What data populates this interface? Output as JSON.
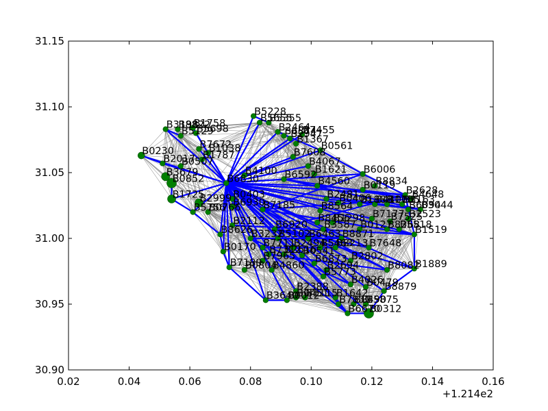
{
  "chart_data": {
    "type": "scatter",
    "subtype": "network-graph",
    "title": "",
    "xlabel": "",
    "ylabel": "",
    "x_offset_label": "+1.214e2",
    "xlim": [
      0.02,
      0.16
    ],
    "ylim": [
      30.9,
      31.15
    ],
    "x_ticks": [
      "0.02",
      "0.04",
      "0.06",
      "0.08",
      "0.10",
      "0.12",
      "0.14",
      "0.16"
    ],
    "y_ticks": [
      "30.90",
      "30.95",
      "31.00",
      "31.05",
      "31.10",
      "31.15"
    ],
    "grid": false,
    "colors": {
      "node": "#007f00",
      "highlight_edge": "#0000ff",
      "edge": "#808080",
      "axes": "#000000"
    },
    "nodes": [
      {
        "label": "B5228",
        "x": 0.081,
        "y": 31.093
      },
      {
        "label": "B5655",
        "x": 0.083,
        "y": 31.088
      },
      {
        "label": "B5355",
        "x": 0.086,
        "y": 31.088
      },
      {
        "label": "B1758",
        "x": 0.061,
        "y": 31.084
      },
      {
        "label": "B3198",
        "x": 0.052,
        "y": 31.083
      },
      {
        "label": "B8822",
        "x": 0.056,
        "y": 31.083
      },
      {
        "label": "B5698",
        "x": 0.062,
        "y": 31.08
      },
      {
        "label": "B5129",
        "x": 0.057,
        "y": 31.078
      },
      {
        "label": "B2464",
        "x": 0.089,
        "y": 31.081
      },
      {
        "label": "B6874",
        "x": 0.091,
        "y": 31.078
      },
      {
        "label": "B7455",
        "x": 0.097,
        "y": 31.079
      },
      {
        "label": "B2947",
        "x": 0.093,
        "y": 31.076
      },
      {
        "label": "B1367",
        "x": 0.095,
        "y": 31.072
      },
      {
        "label": "B0561",
        "x": 0.103,
        "y": 31.067
      },
      {
        "label": "B7672",
        "x": 0.063,
        "y": 31.068
      },
      {
        "label": "B1038",
        "x": 0.066,
        "y": 31.065
      },
      {
        "label": "B0230",
        "x": 0.044,
        "y": 31.063
      },
      {
        "label": "B7608",
        "x": 0.094,
        "y": 31.062
      },
      {
        "label": "B1787",
        "x": 0.064,
        "y": 31.06
      },
      {
        "label": "B2017",
        "x": 0.051,
        "y": 31.057
      },
      {
        "label": "B4067",
        "x": 0.099,
        "y": 31.055
      },
      {
        "label": "B0507",
        "x": 0.057,
        "y": 31.055
      },
      {
        "label": "B1621",
        "x": 0.101,
        "y": 31.049
      },
      {
        "label": "B6006",
        "x": 0.117,
        "y": 31.049
      },
      {
        "label": "B4100",
        "x": 0.078,
        "y": 31.048
      },
      {
        "label": "B6592",
        "x": 0.091,
        "y": 31.045
      },
      {
        "label": "B3679",
        "x": 0.052,
        "y": 31.047
      },
      {
        "label": "B0852",
        "x": 0.054,
        "y": 31.042
      },
      {
        "label": "B4560",
        "x": 0.102,
        "y": 31.04
      },
      {
        "label": "B8834",
        "x": 0.121,
        "y": 31.04
      },
      {
        "label": "B0119",
        "x": 0.117,
        "y": 31.037
      },
      {
        "label": "B6830",
        "x": 0.072,
        "y": 31.042
      },
      {
        "label": "B2628",
        "x": 0.131,
        "y": 31.033
      },
      {
        "label": "B4648",
        "x": 0.133,
        "y": 31.03
      },
      {
        "label": "B2481",
        "x": 0.105,
        "y": 31.03
      },
      {
        "label": "B0403",
        "x": 0.074,
        "y": 31.03
      },
      {
        "label": "B1725",
        "x": 0.054,
        "y": 31.03
      },
      {
        "label": "B2999",
        "x": 0.063,
        "y": 31.027
      },
      {
        "label": "B0406",
        "x": 0.109,
        "y": 31.027
      },
      {
        "label": "B1888",
        "x": 0.116,
        "y": 31.026
      },
      {
        "label": "B4100b",
        "x": 0.121,
        "y": 31.026
      },
      {
        "label": "B1785",
        "x": 0.125,
        "y": 31.026
      },
      {
        "label": "B3163",
        "x": 0.13,
        "y": 31.026
      },
      {
        "label": "B6094",
        "x": 0.132,
        "y": 31.022
      },
      {
        "label": "B3044",
        "x": 0.136,
        "y": 31.022
      },
      {
        "label": "B8564",
        "x": 0.103,
        "y": 31.021
      },
      {
        "label": "B7185",
        "x": 0.084,
        "y": 31.022
      },
      {
        "label": "B6930",
        "x": 0.074,
        "y": 31.024
      },
      {
        "label": "B5756",
        "x": 0.061,
        "y": 31.02
      },
      {
        "label": "B0766",
        "x": 0.066,
        "y": 31.02
      },
      {
        "label": "B7177",
        "x": 0.12,
        "y": 31.015
      },
      {
        "label": "B7525",
        "x": 0.126,
        "y": 31.013
      },
      {
        "label": "B2523",
        "x": 0.132,
        "y": 31.015
      },
      {
        "label": "B8456",
        "x": 0.102,
        "y": 31.012
      },
      {
        "label": "B1298",
        "x": 0.107,
        "y": 31.012
      },
      {
        "label": "B2112",
        "x": 0.074,
        "y": 31.01
      },
      {
        "label": "B6920",
        "x": 0.088,
        "y": 31.007
      },
      {
        "label": "B3587",
        "x": 0.104,
        "y": 31.007
      },
      {
        "label": "B0127",
        "x": 0.116,
        "y": 31.007
      },
      {
        "label": "B8268",
        "x": 0.125,
        "y": 31.007
      },
      {
        "label": "B5518",
        "x": 0.129,
        "y": 31.007
      },
      {
        "label": "B1519",
        "x": 0.134,
        "y": 31.003
      },
      {
        "label": "B8626",
        "x": 0.07,
        "y": 31.003
      },
      {
        "label": "B3232",
        "x": 0.08,
        "y": 31.0
      },
      {
        "label": "B5102",
        "x": 0.089,
        "y": 31.0
      },
      {
        "label": "B6463",
        "x": 0.099,
        "y": 31.0
      },
      {
        "label": "B8871",
        "x": 0.11,
        "y": 31.0
      },
      {
        "label": "B7648",
        "x": 0.119,
        "y": 30.993
      },
      {
        "label": "B7711",
        "x": 0.084,
        "y": 30.993
      },
      {
        "label": "B2494",
        "x": 0.094,
        "y": 30.993
      },
      {
        "label": "B5463",
        "x": 0.103,
        "y": 30.993
      },
      {
        "label": "B8213",
        "x": 0.108,
        "y": 30.993
      },
      {
        "label": "B0170",
        "x": 0.071,
        "y": 30.99
      },
      {
        "label": "B7312",
        "x": 0.086,
        "y": 30.988
      },
      {
        "label": "B2616",
        "x": 0.091,
        "y": 30.988
      },
      {
        "label": "B0541",
        "x": 0.097,
        "y": 30.987
      },
      {
        "label": "B2802",
        "x": 0.113,
        "y": 30.983
      },
      {
        "label": "B7965",
        "x": 0.084,
        "y": 30.983
      },
      {
        "label": "B6873",
        "x": 0.101,
        "y": 30.981
      },
      {
        "label": "B7189",
        "x": 0.073,
        "y": 30.978
      },
      {
        "label": "B0804",
        "x": 0.078,
        "y": 30.976
      },
      {
        "label": "B4860",
        "x": 0.087,
        "y": 30.976
      },
      {
        "label": "B2694",
        "x": 0.105,
        "y": 30.976
      },
      {
        "label": "B8082",
        "x": 0.125,
        "y": 30.976
      },
      {
        "label": "B1889",
        "x": 0.134,
        "y": 30.977
      },
      {
        "label": "B5773",
        "x": 0.104,
        "y": 30.971
      },
      {
        "label": "B4026",
        "x": 0.113,
        "y": 30.965
      },
      {
        "label": "B0479",
        "x": 0.118,
        "y": 30.963
      },
      {
        "label": "B8879",
        "x": 0.124,
        "y": 30.96
      },
      {
        "label": "B2388",
        "x": 0.095,
        "y": 30.96
      },
      {
        "label": "B1642",
        "x": 0.108,
        "y": 30.955
      },
      {
        "label": "B0451",
        "x": 0.095,
        "y": 30.955
      },
      {
        "label": "B1115",
        "x": 0.098,
        "y": 30.955
      },
      {
        "label": "B3640",
        "x": 0.085,
        "y": 30.953
      },
      {
        "label": "B0012",
        "x": 0.092,
        "y": 30.953
      },
      {
        "label": "B7830",
        "x": 0.109,
        "y": 30.95
      },
      {
        "label": "B8490",
        "x": 0.114,
        "y": 30.95
      },
      {
        "label": "B5875",
        "x": 0.118,
        "y": 30.95
      },
      {
        "label": "B6670",
        "x": 0.112,
        "y": 30.943
      },
      {
        "label": "B0312",
        "x": 0.119,
        "y": 30.943
      }
    ],
    "highlight_edges": [
      [
        "B6830",
        "B5228"
      ],
      [
        "B6830",
        "B5655"
      ],
      [
        "B6830",
        "B1758"
      ],
      [
        "B6830",
        "B3198"
      ],
      [
        "B6830",
        "B5698"
      ],
      [
        "B6830",
        "B2464"
      ],
      [
        "B6830",
        "B7455"
      ],
      [
        "B6830",
        "B2947"
      ],
      [
        "B6830",
        "B0561"
      ],
      [
        "B6830",
        "B7672"
      ],
      [
        "B6830",
        "B0230"
      ],
      [
        "B6830",
        "B7608"
      ],
      [
        "B6830",
        "B2017"
      ],
      [
        "B6830",
        "B4067"
      ],
      [
        "B6830",
        "B4560"
      ],
      [
        "B6830",
        "B6006"
      ],
      [
        "B6830",
        "B2628"
      ],
      [
        "B6830",
        "B3044"
      ],
      [
        "B6830",
        "B7177"
      ],
      [
        "B6830",
        "B1519"
      ],
      [
        "B6830",
        "B7648"
      ],
      [
        "B6830",
        "B8871"
      ],
      [
        "B6830",
        "B1889"
      ],
      [
        "B6830",
        "B8082"
      ],
      [
        "B6830",
        "B4026"
      ],
      [
        "B6830",
        "B8879"
      ],
      [
        "B6830",
        "B0312"
      ],
      [
        "B6830",
        "B6670"
      ],
      [
        "B6830",
        "B1642"
      ],
      [
        "B6830",
        "B3640"
      ],
      [
        "B6830",
        "B0012"
      ],
      [
        "B6830",
        "B4860"
      ],
      [
        "B6830",
        "B7189"
      ],
      [
        "B6830",
        "B0170"
      ],
      [
        "B6830",
        "B8626"
      ],
      [
        "B6830",
        "B2112"
      ],
      [
        "B6830",
        "B3232"
      ],
      [
        "B6830",
        "B5756"
      ],
      [
        "B6830",
        "B1725"
      ],
      [
        "B6830",
        "B6592"
      ],
      [
        "B6830",
        "B7185"
      ],
      [
        "B6830",
        "B0406"
      ],
      [
        "B6830",
        "B2802"
      ],
      [
        "B6830",
        "B5773"
      ],
      [
        "B6830",
        "B2388"
      ],
      [
        "B0230",
        "B2017"
      ],
      [
        "B3198",
        "B5129"
      ],
      [
        "B1758",
        "B5698"
      ],
      [
        "B5228",
        "B5355"
      ],
      [
        "B2464",
        "B0561"
      ],
      [
        "B0561",
        "B6006"
      ],
      [
        "B6006",
        "B2628"
      ],
      [
        "B2628",
        "B1519"
      ],
      [
        "B1519",
        "B1889"
      ],
      [
        "B1889",
        "B8879"
      ],
      [
        "B8879",
        "B0312"
      ],
      [
        "B0312",
        "B6670"
      ],
      [
        "B6670",
        "B1642"
      ],
      [
        "B1642",
        "B7830"
      ],
      [
        "B3640",
        "B0012"
      ],
      [
        "B3640",
        "B7189"
      ],
      [
        "B7189",
        "B0170"
      ],
      [
        "B0170",
        "B8626"
      ],
      [
        "B8626",
        "B5756"
      ],
      [
        "B5756",
        "B1725"
      ],
      [
        "B1725",
        "B0852"
      ],
      [
        "B7185",
        "B6006"
      ],
      [
        "B7185",
        "B4648"
      ],
      [
        "B7185",
        "B8082"
      ],
      [
        "B7185",
        "B0479"
      ],
      [
        "B7185",
        "B1519"
      ],
      [
        "B6920",
        "B7648"
      ],
      [
        "B6920",
        "B2628"
      ],
      [
        "B6920",
        "B1889"
      ],
      [
        "B6920",
        "B8871"
      ],
      [
        "B3232",
        "B8871"
      ],
      [
        "B3232",
        "B6670"
      ],
      [
        "B3232",
        "B4026"
      ],
      [
        "B7711",
        "B8213"
      ],
      [
        "B2112",
        "B1519"
      ],
      [
        "B6592",
        "B3044"
      ],
      [
        "B6592",
        "B4648"
      ],
      [
        "B2481",
        "B3044"
      ],
      [
        "B4560",
        "B2628"
      ],
      [
        "B7312",
        "B8082"
      ]
    ]
  }
}
